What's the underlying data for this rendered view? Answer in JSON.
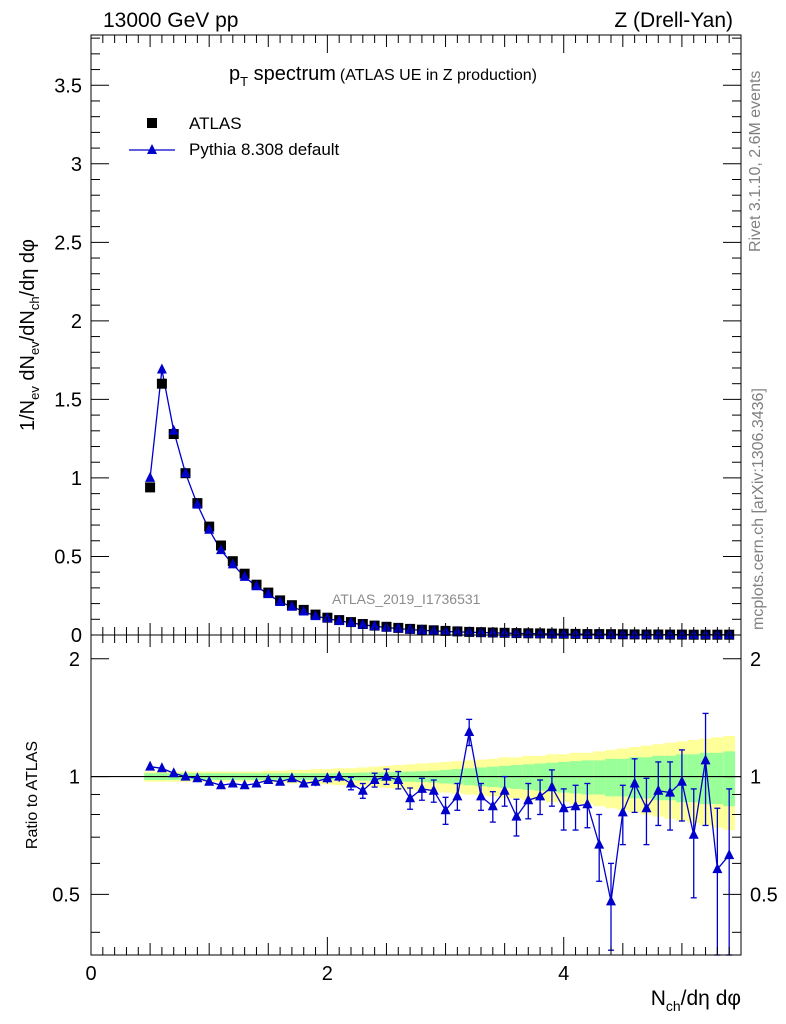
{
  "header": {
    "left": "13000 GeV pp",
    "right": "Z (Drell-Yan)"
  },
  "side_labels": {
    "rivet": "Rivet 3.1.10,  2.6M events",
    "mcplots": "mcplots.cern.ch [arXiv:1306.3436]"
  },
  "colors": {
    "atlas": "#000000",
    "pythia": "#0000cc",
    "band_inner": "#99ff99",
    "band_outer": "#ffff99",
    "analysis_label": "#8c8c8c"
  },
  "chart_data": [
    {
      "type": "scatter",
      "title_main": "p",
      "title_sub": "T",
      "title_rest": " spectrum",
      "title_paren": "(ATLAS UE in Z production)",
      "ylabel": "1/N_ev dN_ev/dN_ch/dη dφ",
      "analysis": "ATLAS_2019_I1736531",
      "xlim": [
        0,
        5.5
      ],
      "ylim": [
        0,
        3.82
      ],
      "yticks": [
        "0",
        "0.5",
        "1",
        "1.5",
        "2",
        "2.5",
        "3",
        "3.5"
      ],
      "yscale": "linear",
      "legend_position": "top-left",
      "series": [
        {
          "name": "ATLAS",
          "marker": "square",
          "x": [
            0.5,
            0.6,
            0.7,
            0.8,
            0.9,
            1.0,
            1.1,
            1.2,
            1.3,
            1.4,
            1.5,
            1.6,
            1.7,
            1.8,
            1.9,
            2.0,
            2.1,
            2.2,
            2.3,
            2.4,
            2.5,
            2.6,
            2.7,
            2.8,
            2.9,
            3.0,
            3.1,
            3.2,
            3.3,
            3.4,
            3.5,
            3.6,
            3.7,
            3.8,
            3.9,
            4.0,
            4.1,
            4.2,
            4.3,
            4.4,
            4.5,
            4.6,
            4.7,
            4.8,
            4.9,
            5.0,
            5.1,
            5.2,
            5.3,
            5.4
          ],
          "y": [
            0.94,
            1.6,
            1.28,
            1.03,
            0.84,
            0.69,
            0.57,
            0.47,
            0.39,
            0.32,
            0.27,
            0.22,
            0.19,
            0.16,
            0.13,
            0.11,
            0.095,
            0.082,
            0.07,
            0.06,
            0.052,
            0.045,
            0.039,
            0.034,
            0.03,
            0.026,
            0.023,
            0.02,
            0.018,
            0.016,
            0.014,
            0.012,
            0.011,
            0.01,
            0.009,
            0.008,
            0.007,
            0.006,
            0.0055,
            0.005,
            0.0045,
            0.004,
            0.0035,
            0.003,
            0.0028,
            0.0025,
            0.0022,
            0.002,
            0.0018,
            0.0016
          ]
        },
        {
          "name": "Pythia 8.308 default",
          "marker": "triangle",
          "x": [
            0.5,
            0.6,
            0.7,
            0.8,
            0.9,
            1.0,
            1.1,
            1.2,
            1.3,
            1.4,
            1.5,
            1.6,
            1.7,
            1.8,
            1.9,
            2.0,
            2.1,
            2.2,
            2.3,
            2.4,
            2.5,
            2.6,
            2.7,
            2.8,
            2.9,
            3.0,
            3.1,
            3.2,
            3.3,
            3.4,
            3.5,
            3.6,
            3.7,
            3.8,
            3.9,
            4.0,
            4.1,
            4.2,
            4.3,
            4.4,
            4.5,
            4.6,
            4.7,
            4.8,
            4.9,
            5.0,
            5.1,
            5.2,
            5.3,
            5.4
          ],
          "y": [
            1.0,
            1.69,
            1.3,
            1.03,
            0.83,
            0.67,
            0.54,
            0.45,
            0.37,
            0.31,
            0.26,
            0.21,
            0.18,
            0.15,
            0.12,
            0.105,
            0.09,
            0.078,
            0.065,
            0.056,
            0.048,
            0.041,
            0.035,
            0.03,
            0.026,
            0.022,
            0.02,
            0.018,
            0.016,
            0.014,
            0.012,
            0.01,
            0.009,
            0.008,
            0.007,
            0.006,
            0.0055,
            0.005,
            0.0045,
            0.004,
            0.0035,
            0.003,
            0.0028,
            0.0025,
            0.0022,
            0.002,
            0.0018,
            0.0016,
            0.0014,
            0.0012
          ]
        }
      ]
    },
    {
      "type": "scatter",
      "ylabel": "Ratio to ATLAS",
      "xlabel": "N_ch/dη dφ",
      "xlim": [
        0,
        5.5
      ],
      "ylim": [
        0.35,
        2.3
      ],
      "xticks": [
        "0",
        "2",
        "4"
      ],
      "yticks": [
        "0.5",
        "1",
        "2"
      ],
      "yscale": "log",
      "reference_line": 1,
      "band_x_edges": [
        0.45,
        0.55,
        0.65,
        0.75,
        0.85,
        0.95,
        1.05,
        1.15,
        1.25,
        1.35,
        1.45,
        1.55,
        1.65,
        1.75,
        1.85,
        1.95,
        2.05,
        2.15,
        2.25,
        2.35,
        2.45,
        2.55,
        2.65,
        2.75,
        2.85,
        2.95,
        3.05,
        3.15,
        3.25,
        3.35,
        3.45,
        3.55,
        3.65,
        3.75,
        3.85,
        3.95,
        4.05,
        4.15,
        4.25,
        4.35,
        4.45,
        4.55,
        4.65,
        4.75,
        4.85,
        4.95,
        5.05,
        5.15,
        5.25,
        5.35,
        5.45
      ],
      "band_inner_halfwidth": [
        0.02,
        0.02,
        0.02,
        0.02,
        0.02,
        0.02,
        0.02,
        0.02,
        0.02,
        0.02,
        0.02,
        0.02,
        0.02,
        0.02,
        0.02,
        0.02,
        0.022,
        0.022,
        0.024,
        0.025,
        0.026,
        0.028,
        0.03,
        0.032,
        0.035,
        0.04,
        0.045,
        0.05,
        0.055,
        0.06,
        0.065,
        0.07,
        0.075,
        0.08,
        0.085,
        0.09,
        0.095,
        0.1,
        0.1,
        0.11,
        0.11,
        0.12,
        0.12,
        0.13,
        0.13,
        0.14,
        0.14,
        0.15,
        0.15,
        0.16
      ],
      "band_outer_halfwidth": [
        0.03,
        0.03,
        0.03,
        0.03,
        0.03,
        0.03,
        0.03,
        0.03,
        0.03,
        0.03,
        0.035,
        0.035,
        0.04,
        0.04,
        0.045,
        0.045,
        0.05,
        0.05,
        0.055,
        0.06,
        0.065,
        0.07,
        0.075,
        0.08,
        0.085,
        0.09,
        0.095,
        0.1,
        0.105,
        0.11,
        0.12,
        0.12,
        0.13,
        0.13,
        0.14,
        0.14,
        0.15,
        0.15,
        0.16,
        0.17,
        0.18,
        0.19,
        0.2,
        0.21,
        0.22,
        0.23,
        0.24,
        0.25,
        0.26,
        0.27
      ],
      "series": [
        {
          "name": "Pythia 8.308 default",
          "x": [
            0.5,
            0.6,
            0.7,
            0.8,
            0.9,
            1.0,
            1.1,
            1.2,
            1.3,
            1.4,
            1.5,
            1.6,
            1.7,
            1.8,
            1.9,
            2.0,
            2.1,
            2.2,
            2.3,
            2.4,
            2.5,
            2.6,
            2.7,
            2.8,
            2.9,
            3.0,
            3.1,
            3.2,
            3.3,
            3.4,
            3.5,
            3.6,
            3.7,
            3.8,
            3.9,
            4.0,
            4.1,
            4.2,
            4.3,
            4.4,
            4.5,
            4.6,
            4.7,
            4.8,
            4.9,
            5.0,
            5.1,
            5.2,
            5.3,
            5.4
          ],
          "y": [
            1.06,
            1.05,
            1.02,
            1.0,
            0.99,
            0.97,
            0.95,
            0.96,
            0.95,
            0.96,
            0.98,
            0.97,
            0.99,
            0.96,
            0.97,
            0.99,
            1.0,
            0.96,
            0.92,
            0.98,
            1.0,
            0.98,
            0.88,
            0.93,
            0.92,
            0.82,
            0.89,
            1.3,
            0.89,
            0.84,
            0.92,
            0.79,
            0.87,
            0.89,
            0.94,
            0.83,
            0.84,
            0.85,
            0.67,
            0.48,
            0.81,
            0.96,
            0.83,
            0.92,
            0.91,
            0.97,
            0.71,
            1.1,
            0.58,
            0.63
          ],
          "err": [
            0.01,
            0.01,
            0.01,
            0.01,
            0.01,
            0.01,
            0.01,
            0.01,
            0.01,
            0.01,
            0.015,
            0.015,
            0.02,
            0.02,
            0.025,
            0.03,
            0.03,
            0.035,
            0.04,
            0.04,
            0.045,
            0.05,
            0.055,
            0.06,
            0.06,
            0.065,
            0.07,
            0.1,
            0.07,
            0.075,
            0.08,
            0.085,
            0.09,
            0.09,
            0.1,
            0.1,
            0.11,
            0.11,
            0.13,
            0.12,
            0.14,
            0.15,
            0.16,
            0.17,
            0.18,
            0.2,
            0.22,
            0.35,
            0.25,
            0.3
          ]
        }
      ]
    }
  ]
}
